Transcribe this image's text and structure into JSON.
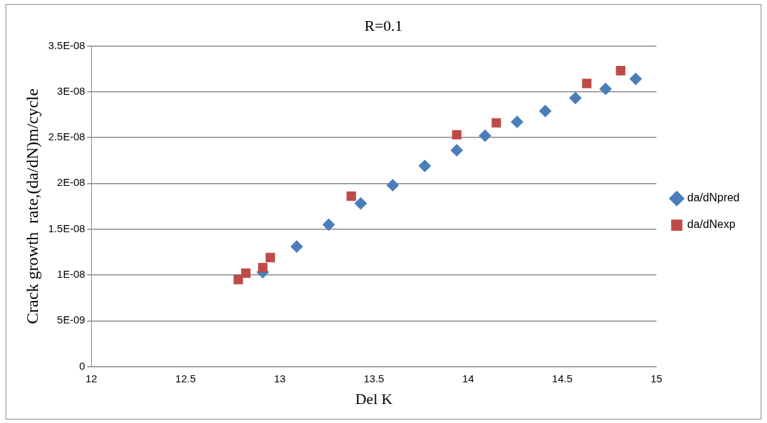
{
  "chart_data": {
    "type": "scatter",
    "title": "R=0.1",
    "xlabel": "Del K",
    "ylabel": "Crack growth  rate,(da/dN)m/cycle",
    "xlim": [
      12,
      15
    ],
    "xticks": [
      12,
      12.5,
      13,
      13.5,
      14,
      14.5,
      15
    ],
    "ylim": [
      0,
      3.5e-08
    ],
    "yticks": [
      0,
      {
        "value": 5e-09,
        "label": "5E-09"
      },
      {
        "value": 1e-08,
        "label": "1E-08"
      },
      {
        "value": 1.5e-08,
        "label": "1.5E-08"
      },
      {
        "value": 2e-08,
        "label": "2E-08"
      },
      {
        "value": 2.5e-08,
        "label": "2.5E-08"
      },
      {
        "value": 3e-08,
        "label": "3E-08"
      },
      {
        "value": 3.5e-08,
        "label": "3.5E-08"
      }
    ],
    "grid": "y",
    "legend": "right",
    "series": [
      {
        "name": "da/dNpred",
        "color": "#4a7ebb",
        "marker": "diamond",
        "x": [
          12.91,
          13.09,
          13.26,
          13.43,
          13.6,
          13.77,
          13.94,
          14.09,
          14.26,
          14.41,
          14.57,
          14.73,
          14.89
        ],
        "values": [
          1.03e-08,
          1.31e-08,
          1.55e-08,
          1.78e-08,
          1.98e-08,
          2.19e-08,
          2.36e-08,
          2.52e-08,
          2.67e-08,
          2.79e-08,
          2.93e-08,
          3.03e-08,
          3.14e-08
        ]
      },
      {
        "name": "da/dNexp",
        "color": "#be4b48",
        "marker": "square",
        "x": [
          12.78,
          12.82,
          12.91,
          12.95,
          13.38,
          13.94,
          14.15,
          14.63,
          14.81
        ],
        "values": [
          9.5e-09,
          1.02e-08,
          1.08e-08,
          1.19e-08,
          1.86e-08,
          2.53e-08,
          2.66e-08,
          3.09e-08,
          3.23e-08
        ]
      }
    ]
  }
}
